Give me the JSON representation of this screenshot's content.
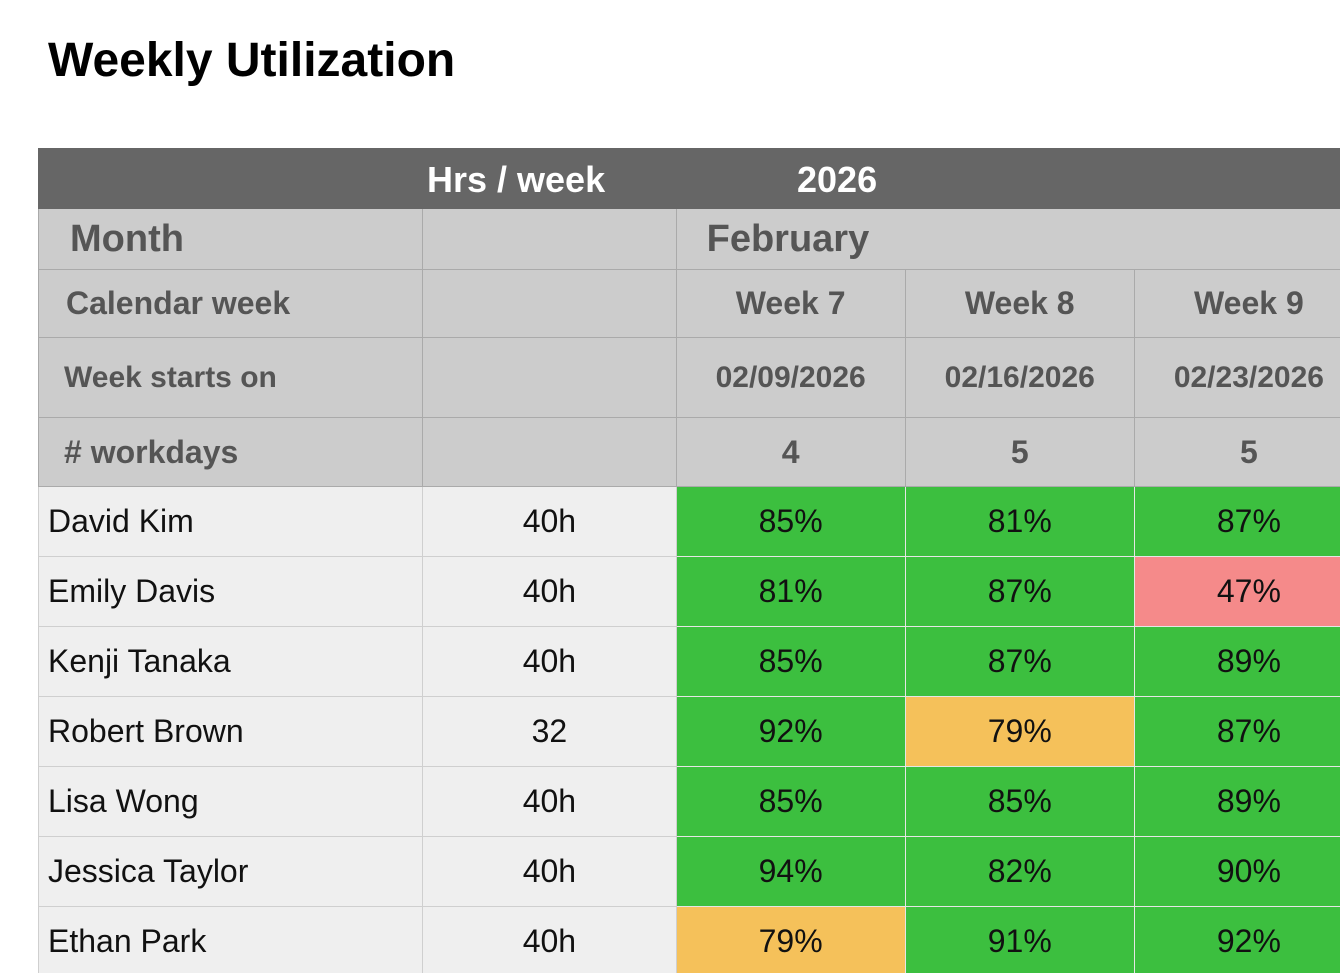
{
  "title": "Weekly Utilization",
  "header": {
    "hrs_per_week_label": "Hrs / week",
    "year": "2026",
    "month_label": "Month",
    "month": "February",
    "calendar_week_label": "Calendar week",
    "week_starts_label": "Week starts on",
    "workdays_label": "# workdays"
  },
  "weeks": [
    {
      "name": "Week 7",
      "start": "02/09/2026",
      "workdays": "4"
    },
    {
      "name": "Week 8",
      "start": "02/16/2026",
      "workdays": "5"
    },
    {
      "name": "Week 9",
      "start": "02/23/2026",
      "workdays": "5"
    }
  ],
  "rows": [
    {
      "name": "David Kim",
      "hrs": "40h",
      "util": [
        "85%",
        "81%",
        "87%"
      ],
      "status": [
        "good",
        "good",
        "good"
      ]
    },
    {
      "name": "Emily Davis",
      "hrs": "40h",
      "util": [
        "81%",
        "87%",
        "47%"
      ],
      "status": [
        "good",
        "good",
        "bad"
      ]
    },
    {
      "name": "Kenji Tanaka",
      "hrs": "40h",
      "util": [
        "85%",
        "87%",
        "89%"
      ],
      "status": [
        "good",
        "good",
        "good"
      ]
    },
    {
      "name": "Robert Brown",
      "hrs": "32",
      "util": [
        "92%",
        "79%",
        "87%"
      ],
      "status": [
        "good",
        "warn",
        "good"
      ]
    },
    {
      "name": "Lisa Wong",
      "hrs": "40h",
      "util": [
        "85%",
        "85%",
        "89%"
      ],
      "status": [
        "good",
        "good",
        "good"
      ]
    },
    {
      "name": "Jessica Taylor",
      "hrs": "40h",
      "util": [
        "94%",
        "82%",
        "90%"
      ],
      "status": [
        "good",
        "good",
        "good"
      ]
    },
    {
      "name": "Ethan Park",
      "hrs": "40h",
      "util": [
        "79%",
        "91%",
        "92%"
      ],
      "status": [
        "warn",
        "good",
        "good"
      ]
    }
  ],
  "colors": {
    "good": "#3cbf3f",
    "warn": "#f5c15a",
    "bad": "#f58a8a",
    "header_dark": "#666666",
    "header_light": "#cccccc"
  }
}
